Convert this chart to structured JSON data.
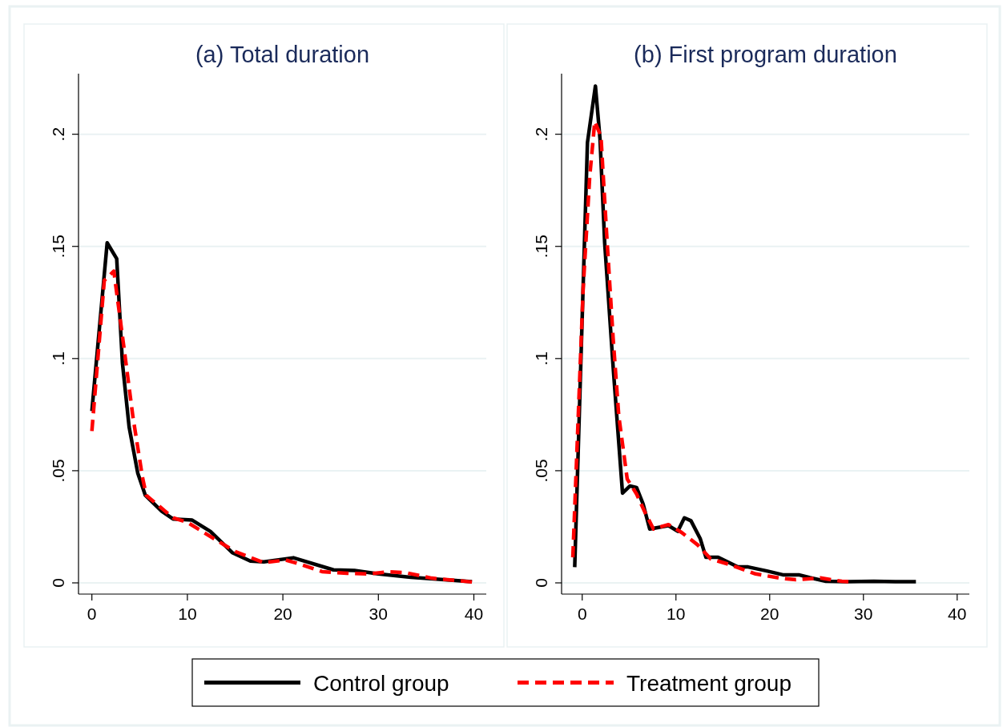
{
  "chart_data": [
    {
      "type": "line",
      "title": "(a) Total duration",
      "xlim": [
        -1.4,
        41.3
      ],
      "xticks": [
        0,
        10,
        20,
        30,
        40
      ],
      "ylim": [
        -0.005,
        0.227
      ],
      "yticks": [
        {
          "value": 0,
          "label": "0"
        },
        {
          "value": 0.05,
          "label": ".05"
        },
        {
          "value": 0.1,
          "label": ".1"
        },
        {
          "value": 0.15,
          "label": ".15"
        },
        {
          "value": 0.2,
          "label": ".2"
        }
      ],
      "grid": "y",
      "legend": "bottom",
      "series": [
        {
          "name": "Control group",
          "color": "#000000",
          "line_style": "solid",
          "x": [
            0,
            1.6,
            2.6,
            3.2,
            3.9,
            4.8,
            5.6,
            7.3,
            8.5,
            10.5,
            12.4,
            14.7,
            16.6,
            18,
            21.1,
            25.3,
            27.5,
            30,
            33.4,
            39.8
          ],
          "values": [
            0.0766,
            0.1516,
            0.1445,
            0.098,
            0.0695,
            0.049,
            0.039,
            0.032,
            0.0285,
            0.028,
            0.023,
            0.0135,
            0.0097,
            0.0094,
            0.0112,
            0.0058,
            0.0055,
            0.004,
            0.0025,
            0.0005
          ]
        },
        {
          "name": "Treatment group",
          "color": "#ff0000",
          "line_style": "dashed",
          "x": [
            0,
            1.3,
            2.3,
            3.5,
            4.3,
            5.3,
            5.7,
            8.5,
            10,
            11.9,
            15,
            18,
            20.3,
            21.9,
            24.1,
            26.7,
            28.9,
            31.1,
            32.8,
            35.6,
            39.8
          ],
          "values": [
            0.0677,
            0.1348,
            0.139,
            0.1003,
            0.074,
            0.047,
            0.039,
            0.029,
            0.027,
            0.022,
            0.014,
            0.009,
            0.0102,
            0.0082,
            0.005,
            0.0043,
            0.004,
            0.0049,
            0.0046,
            0.0021,
            0.0004
          ]
        }
      ]
    },
    {
      "type": "line",
      "title": "(b) First program duration",
      "xlim": [
        -2.2,
        41.3
      ],
      "xticks": [
        0,
        10,
        20,
        30,
        40
      ],
      "ylim": [
        -0.005,
        0.227
      ],
      "yticks": [
        {
          "value": 0,
          "label": "0"
        },
        {
          "value": 0.05,
          "label": ".05"
        },
        {
          "value": 0.1,
          "label": ".1"
        },
        {
          "value": 0.15,
          "label": ".15"
        },
        {
          "value": 0.2,
          "label": ".2"
        }
      ],
      "grid": "y",
      "legend": "bottom",
      "series": [
        {
          "name": "Control group",
          "color": "#000000",
          "line_style": "solid",
          "x": [
            -0.8,
            0.56,
            1.41,
            1.9,
            2.4,
            3.3,
            4.3,
            5.1,
            5.8,
            6.5,
            7.2,
            9.2,
            10.2,
            10.9,
            11.6,
            12.6,
            13.2,
            14.5,
            16.6,
            17.7,
            19.7,
            21.4,
            23.1,
            24.3,
            26,
            28.3,
            31.1,
            33.4,
            35.6
          ],
          "values": [
            0.007,
            0.1963,
            0.2215,
            0.1978,
            0.1514,
            0.0962,
            0.04,
            0.0432,
            0.0425,
            0.0351,
            0.024,
            0.0255,
            0.023,
            0.029,
            0.0277,
            0.0196,
            0.0114,
            0.0114,
            0.0071,
            0.0071,
            0.0053,
            0.0036,
            0.0036,
            0.0023,
            0.0007,
            0.0005,
            0.0007,
            0.0005,
            0.0005
          ]
        },
        {
          "name": "Treatment group",
          "color": "#ff0000",
          "line_style": "dashed",
          "x": [
            -1,
            0.1,
            0.8,
            1.34,
            2,
            2.6,
            3.3,
            3.9,
            4.8,
            5.8,
            6.7,
            7.6,
            9.2,
            10.6,
            12.3,
            13.7,
            15.7,
            18.5,
            21.1,
            22.8,
            25.4,
            27.7,
            28.4
          ],
          "values": [
            0.0114,
            0.131,
            0.181,
            0.2057,
            0.199,
            0.156,
            0.109,
            0.0745,
            0.0463,
            0.0396,
            0.0314,
            0.024,
            0.026,
            0.0225,
            0.017,
            0.0107,
            0.0082,
            0.004,
            0.0021,
            0.0014,
            0.0022,
            0.0007,
            0.0005
          ]
        }
      ]
    }
  ]
}
